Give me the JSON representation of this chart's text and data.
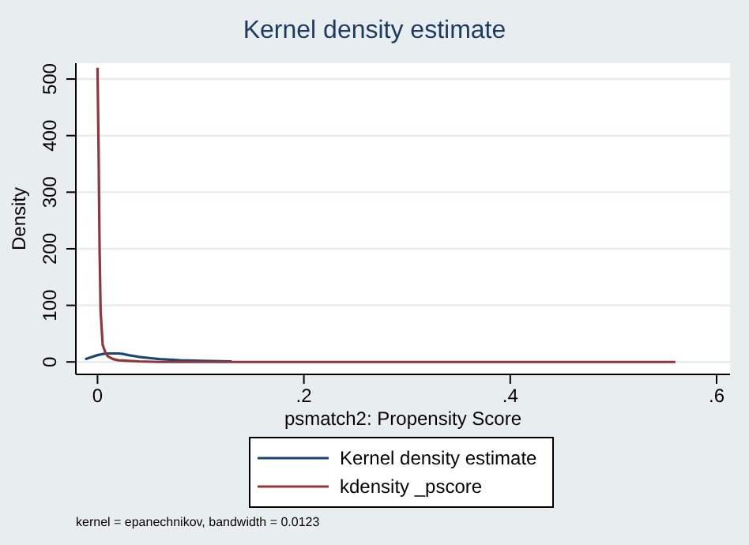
{
  "chart_data": {
    "type": "line",
    "title": "Kernel density estimate",
    "xlabel": "psmatch2: Propensity Score",
    "ylabel": "Density",
    "xlim": [
      -0.021,
      0.613
    ],
    "ylim": [
      -22,
      528
    ],
    "xticks": [
      {
        "value": 0,
        "label": "0"
      },
      {
        "value": 0.2,
        "label": ".2"
      },
      {
        "value": 0.4,
        "label": ".4"
      },
      {
        "value": 0.6,
        "label": ".6"
      }
    ],
    "yticks": [
      0,
      100,
      200,
      300,
      400,
      500
    ],
    "grid": "y",
    "legend": "bottom",
    "line_style": "solid",
    "marker": "none",
    "series": [
      {
        "name": "Kernel density estimate",
        "color": "#1a476f",
        "x": [
          -0.012,
          -0.005,
          0,
          0.005,
          0.01,
          0.015,
          0.02,
          0.025,
          0.03,
          0.04,
          0.05,
          0.06,
          0.08,
          0.1,
          0.13
        ],
        "values": [
          5,
          9,
          12,
          14,
          15,
          15,
          15,
          14,
          12,
          9,
          7,
          5,
          3,
          2,
          1
        ]
      },
      {
        "name": "kdensity _pscore",
        "color": "#90353b",
        "x": [
          0,
          0.001,
          0.002,
          0.003,
          0.005,
          0.008,
          0.01,
          0.015,
          0.02,
          0.03,
          0.04,
          0.06,
          0.08,
          0.1,
          0.15,
          0.2,
          0.3,
          0.4,
          0.5,
          0.56
        ],
        "values": [
          520,
          380,
          200,
          90,
          30,
          15,
          10,
          5,
          3,
          2,
          1,
          0,
          0,
          0,
          0,
          0,
          0,
          0,
          0,
          0
        ]
      }
    ],
    "annotations": [
      "kernel = epanechnikov, bandwidth = 0.0123"
    ]
  }
}
